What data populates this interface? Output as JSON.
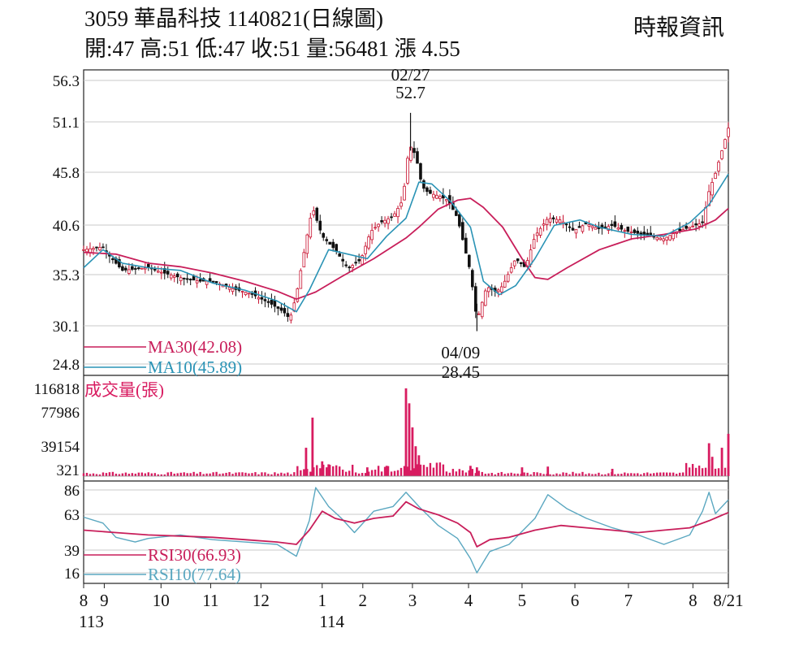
{
  "header": {
    "title": "3059  華晶科技 1140821(日線圖)",
    "ohlc": "開:47 高:51 低:47 收:51 量:56481 漲 4.55",
    "source": "時報資訊"
  },
  "colors": {
    "up": "#c8102e",
    "down": "#111111",
    "ma30": "#c81e5a",
    "ma10": "#2a93b5",
    "volume": "#d81b60",
    "rsi30": "#c81e5a",
    "rsi10": "#5aa7c0",
    "grid": "#c8c8c8"
  },
  "chart_data": [
    {
      "type": "candlestick",
      "panel": "price",
      "y_ticks": [
        "56.3",
        "51.1",
        "45.8",
        "40.6",
        "35.3",
        "30.1",
        "24.8"
      ],
      "ylim": [
        24.8,
        56.3
      ],
      "grid": true,
      "x_month_ticks": [
        {
          "label": "8",
          "t": 0
        },
        {
          "label": "9",
          "t": 0.032
        },
        {
          "label": "10",
          "t": 0.12
        },
        {
          "label": "11",
          "t": 0.197
        },
        {
          "label": "12",
          "t": 0.275
        },
        {
          "label": "1",
          "t": 0.37
        },
        {
          "label": "2",
          "t": 0.433
        },
        {
          "label": "3",
          "t": 0.51
        },
        {
          "label": "4",
          "t": 0.597
        },
        {
          "label": "5",
          "t": 0.68
        },
        {
          "label": "6",
          "t": 0.762
        },
        {
          "label": "7",
          "t": 0.845
        },
        {
          "label": "8",
          "t": 0.945
        },
        {
          "label": "8/21",
          "t": 1.0
        }
      ],
      "x_year_labels": [
        {
          "label": "113",
          "t": 0.012
        },
        {
          "label": "114",
          "t": 0.385
        }
      ],
      "price_path": [
        [
          0.0,
          37.5
        ],
        [
          0.03,
          37.8
        ],
        [
          0.04,
          36.8
        ],
        [
          0.06,
          35.2
        ],
        [
          0.1,
          35.5
        ],
        [
          0.12,
          35.0
        ],
        [
          0.15,
          34.4
        ],
        [
          0.18,
          34.0
        ],
        [
          0.2,
          34.0
        ],
        [
          0.23,
          33.2
        ],
        [
          0.26,
          32.6
        ],
        [
          0.29,
          31.5
        ],
        [
          0.31,
          30.6
        ],
        [
          0.32,
          29.8
        ],
        [
          0.33,
          32.5
        ],
        [
          0.345,
          38.5
        ],
        [
          0.355,
          42.2
        ],
        [
          0.37,
          39.0
        ],
        [
          0.39,
          37.5
        ],
        [
          0.41,
          35.4
        ],
        [
          0.43,
          36.4
        ],
        [
          0.445,
          39.5
        ],
        [
          0.46,
          40.5
        ],
        [
          0.48,
          41.2
        ],
        [
          0.495,
          43.0
        ],
        [
          0.505,
          49.2
        ],
        [
          0.515,
          48.0
        ],
        [
          0.525,
          44.5
        ],
        [
          0.535,
          43.8
        ],
        [
          0.55,
          43.5
        ],
        [
          0.565,
          43.0
        ],
        [
          0.58,
          41.0
        ],
        [
          0.59,
          38.0
        ],
        [
          0.6,
          35.0
        ],
        [
          0.61,
          29.6
        ],
        [
          0.625,
          33.4
        ],
        [
          0.64,
          32.8
        ],
        [
          0.65,
          33.5
        ],
        [
          0.67,
          36.5
        ],
        [
          0.685,
          35.5
        ],
        [
          0.7,
          39.0
        ],
        [
          0.72,
          41.0
        ],
        [
          0.74,
          40.8
        ],
        [
          0.76,
          39.6
        ],
        [
          0.78,
          40.4
        ],
        [
          0.8,
          39.8
        ],
        [
          0.82,
          40.2
        ],
        [
          0.84,
          39.6
        ],
        [
          0.86,
          39.3
        ],
        [
          0.88,
          39.0
        ],
        [
          0.9,
          38.7
        ],
        [
          0.92,
          39.5
        ],
        [
          0.94,
          40.0
        ],
        [
          0.96,
          40.5
        ],
        [
          0.97,
          44.0
        ],
        [
          0.98,
          46.0
        ],
        [
          0.99,
          48.5
        ],
        [
          1.0,
          51.0
        ]
      ],
      "ma30": [
        [
          0.0,
          37.2
        ],
        [
          0.05,
          37.0
        ],
        [
          0.1,
          36.0
        ],
        [
          0.15,
          35.6
        ],
        [
          0.2,
          34.9
        ],
        [
          0.25,
          34.0
        ],
        [
          0.3,
          32.9
        ],
        [
          0.33,
          32.0
        ],
        [
          0.36,
          32.8
        ],
        [
          0.4,
          34.5
        ],
        [
          0.45,
          36.5
        ],
        [
          0.5,
          38.8
        ],
        [
          0.52,
          40.0
        ],
        [
          0.55,
          42.0
        ],
        [
          0.58,
          43.0
        ],
        [
          0.6,
          43.2
        ],
        [
          0.62,
          42.2
        ],
        [
          0.65,
          40.0
        ],
        [
          0.68,
          36.5
        ],
        [
          0.7,
          34.4
        ],
        [
          0.72,
          34.2
        ],
        [
          0.75,
          35.5
        ],
        [
          0.8,
          37.5
        ],
        [
          0.85,
          38.7
        ],
        [
          0.9,
          39.2
        ],
        [
          0.95,
          39.8
        ],
        [
          0.98,
          40.8
        ],
        [
          1.0,
          42.08
        ]
      ],
      "ma10": [
        [
          0.0,
          35.5
        ],
        [
          0.03,
          37.5
        ],
        [
          0.06,
          36.0
        ],
        [
          0.1,
          35.5
        ],
        [
          0.15,
          35.2
        ],
        [
          0.2,
          33.8
        ],
        [
          0.25,
          33.0
        ],
        [
          0.3,
          31.8
        ],
        [
          0.33,
          30.6
        ],
        [
          0.35,
          33.0
        ],
        [
          0.38,
          37.5
        ],
        [
          0.41,
          37.0
        ],
        [
          0.44,
          36.5
        ],
        [
          0.47,
          39.0
        ],
        [
          0.5,
          41.0
        ],
        [
          0.52,
          45.0
        ],
        [
          0.54,
          44.8
        ],
        [
          0.57,
          42.8
        ],
        [
          0.6,
          40.0
        ],
        [
          0.62,
          34.0
        ],
        [
          0.645,
          32.5
        ],
        [
          0.67,
          33.5
        ],
        [
          0.7,
          36.5
        ],
        [
          0.73,
          40.2
        ],
        [
          0.77,
          40.8
        ],
        [
          0.8,
          40.0
        ],
        [
          0.85,
          39.2
        ],
        [
          0.9,
          39.0
        ],
        [
          0.94,
          40.5
        ],
        [
          0.97,
          42.5
        ],
        [
          1.0,
          45.89
        ]
      ],
      "annotations": [
        {
          "label": "02/27",
          "value": "52.7",
          "position": "top",
          "t": 0.507
        },
        {
          "label": "04/09",
          "value": "28.45",
          "position": "bottom",
          "t": 0.61
        }
      ],
      "legend": [
        {
          "name": "MA30(42.08)",
          "color": "#c81e5a"
        },
        {
          "name": "MA10(45.89)",
          "color": "#2a93b5"
        }
      ]
    },
    {
      "type": "bar",
      "panel": "volume",
      "title": "成交量(張)",
      "y_ticks": [
        "116818",
        "77986",
        "39154",
        "321"
      ],
      "ylim": [
        321,
        116818
      ],
      "spikes": [
        [
          0.345,
          38000
        ],
        [
          0.355,
          78000
        ],
        [
          0.37,
          20000
        ],
        [
          0.38,
          16000
        ],
        [
          0.44,
          12000
        ],
        [
          0.47,
          14000
        ],
        [
          0.5,
          116818
        ],
        [
          0.505,
          97000
        ],
        [
          0.51,
          65000
        ],
        [
          0.515,
          40000
        ],
        [
          0.52,
          28000
        ],
        [
          0.6,
          14000
        ],
        [
          0.61,
          12000
        ],
        [
          0.68,
          12000
        ],
        [
          0.72,
          13000
        ],
        [
          0.82,
          10000
        ],
        [
          0.97,
          44000
        ],
        [
          0.975,
          26000
        ],
        [
          0.99,
          38000
        ],
        [
          1.0,
          56481
        ]
      ]
    },
    {
      "type": "line",
      "panel": "rsi",
      "y_ticks": [
        "86",
        "63",
        "39",
        "16"
      ],
      "ylim": [
        16,
        86
      ],
      "rsi30": [
        [
          0.0,
          52
        ],
        [
          0.05,
          50
        ],
        [
          0.1,
          48
        ],
        [
          0.15,
          47
        ],
        [
          0.2,
          46
        ],
        [
          0.25,
          44
        ],
        [
          0.3,
          42
        ],
        [
          0.33,
          40
        ],
        [
          0.35,
          52
        ],
        [
          0.37,
          68
        ],
        [
          0.39,
          62
        ],
        [
          0.42,
          58
        ],
        [
          0.45,
          62
        ],
        [
          0.48,
          64
        ],
        [
          0.5,
          76
        ],
        [
          0.52,
          70
        ],
        [
          0.55,
          65
        ],
        [
          0.58,
          58
        ],
        [
          0.6,
          50
        ],
        [
          0.61,
          38
        ],
        [
          0.63,
          44
        ],
        [
          0.66,
          46
        ],
        [
          0.7,
          52
        ],
        [
          0.74,
          56
        ],
        [
          0.78,
          54
        ],
        [
          0.82,
          52
        ],
        [
          0.86,
          50
        ],
        [
          0.9,
          52
        ],
        [
          0.94,
          54
        ],
        [
          0.97,
          60
        ],
        [
          1.0,
          66.93
        ]
      ],
      "rsi10": [
        [
          0.0,
          63
        ],
        [
          0.03,
          58
        ],
        [
          0.05,
          46
        ],
        [
          0.08,
          42
        ],
        [
          0.1,
          45
        ],
        [
          0.15,
          48
        ],
        [
          0.2,
          44
        ],
        [
          0.25,
          42
        ],
        [
          0.3,
          40
        ],
        [
          0.33,
          30
        ],
        [
          0.35,
          60
        ],
        [
          0.36,
          88
        ],
        [
          0.38,
          72
        ],
        [
          0.4,
          62
        ],
        [
          0.42,
          50
        ],
        [
          0.45,
          68
        ],
        [
          0.48,
          72
        ],
        [
          0.5,
          84
        ],
        [
          0.52,
          72
        ],
        [
          0.55,
          56
        ],
        [
          0.58,
          45
        ],
        [
          0.6,
          28
        ],
        [
          0.61,
          16
        ],
        [
          0.63,
          34
        ],
        [
          0.66,
          40
        ],
        [
          0.7,
          62
        ],
        [
          0.72,
          82
        ],
        [
          0.75,
          70
        ],
        [
          0.78,
          62
        ],
        [
          0.82,
          54
        ],
        [
          0.86,
          48
        ],
        [
          0.9,
          40
        ],
        [
          0.94,
          48
        ],
        [
          0.96,
          68
        ],
        [
          0.97,
          84
        ],
        [
          0.98,
          66
        ],
        [
          1.0,
          77.64
        ]
      ],
      "legend": [
        {
          "name": "RSI30(66.93)",
          "color": "#c81e5a"
        },
        {
          "name": "RSI10(77.64)",
          "color": "#5aa7c0"
        }
      ]
    }
  ]
}
